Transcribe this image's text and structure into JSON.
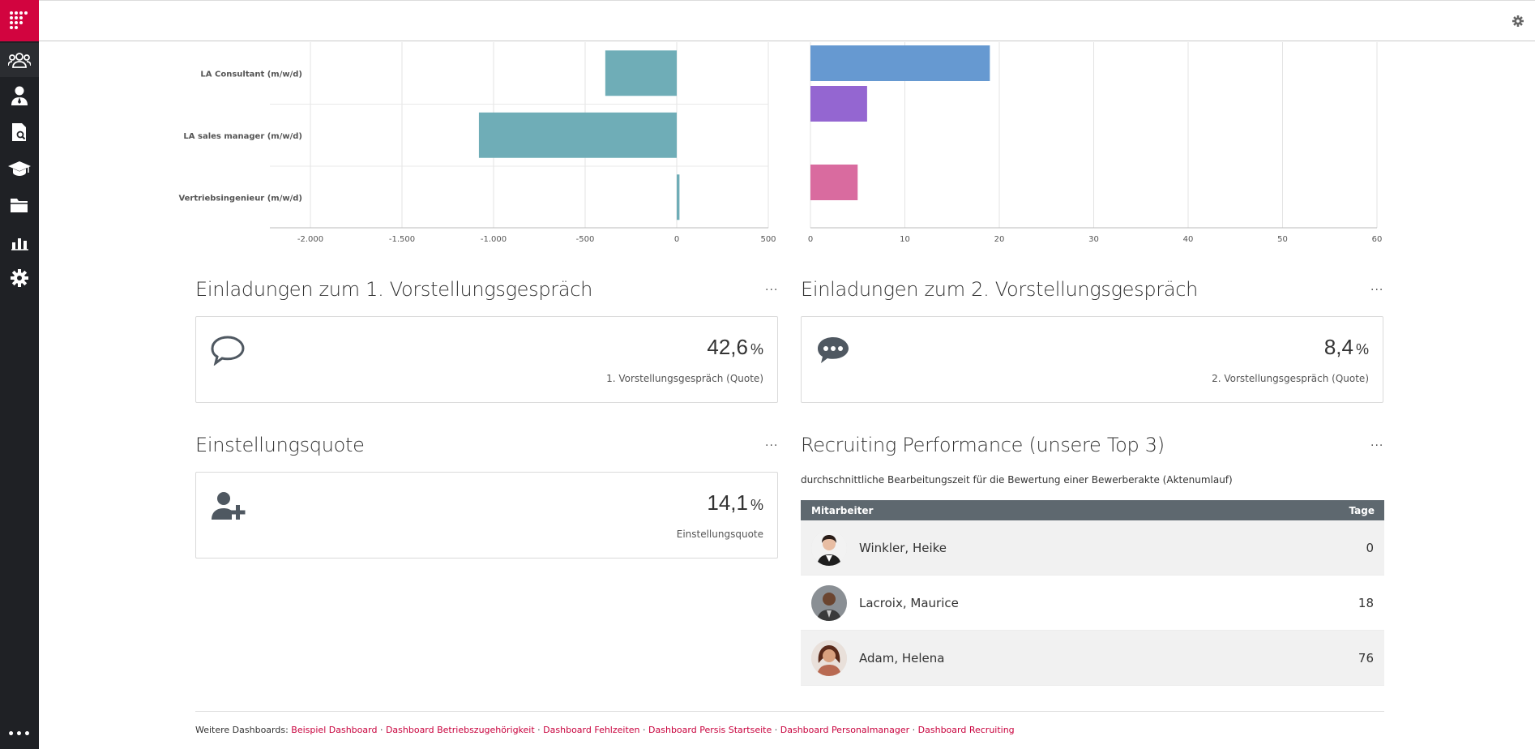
{
  "sidebar": {
    "items": [
      {
        "name": "users-icon"
      },
      {
        "name": "person-icon"
      },
      {
        "name": "document-search-icon"
      },
      {
        "name": "graduation-cap-icon"
      },
      {
        "name": "folder-icon"
      },
      {
        "name": "chart-icon"
      },
      {
        "name": "settings-icon"
      }
    ],
    "more_label": "•••"
  },
  "chart_data": [
    {
      "type": "bar",
      "orientation": "horizontal",
      "categories": [
        "LA Consultant (m/w/d)",
        "LA sales manager (m/w/d)",
        "Vertriebsingenieur (m/w/d)"
      ],
      "values": [
        -390,
        -1080,
        15
      ],
      "xlim": [
        -2000,
        500
      ],
      "xticks": [
        "-2.000",
        "-1.500",
        "-1.000",
        "-500",
        "0",
        "500"
      ],
      "color": "#6fadb7",
      "grid": true
    },
    {
      "type": "bar",
      "orientation": "horizontal",
      "values": [
        19,
        6,
        0,
        5
      ],
      "colors": [
        "#6699d1",
        "#9466d1",
        "#d166a3",
        "#d96b9f"
      ],
      "xlim": [
        0,
        60
      ],
      "xticks": [
        "0",
        "10",
        "20",
        "30",
        "40",
        "50",
        "60"
      ],
      "grid": true
    }
  ],
  "widgets": {
    "w1": {
      "title": "Einladungen zum 1. Vorstellungsgespräch",
      "menu": "...",
      "value": "42,6",
      "unit": "%",
      "sub": "1. Vorstellungsgespräch (Quote)"
    },
    "w2": {
      "title": "Einladungen zum 2. Vorstellungsgespräch",
      "menu": "...",
      "value": "8,4",
      "unit": "%",
      "sub": "2. Vorstellungsgespräch (Quote)"
    },
    "w3": {
      "title": "Einstellungsquote",
      "menu": "...",
      "value": "14,1",
      "unit": "%",
      "sub": "Einstellungsquote"
    },
    "w4": {
      "title": "Recruiting Performance (unsere Top 3)",
      "menu": "...",
      "desc": "durchschnittliche Bearbeitungszeit für die Bewertung einer Bewerberakte (Aktenumlauf)",
      "col_employee": "Mitarbeiter",
      "col_days": "Tage",
      "rows": [
        {
          "name": "Winkler, Heike",
          "days": "0"
        },
        {
          "name": "Lacroix, Maurice",
          "days": "18"
        },
        {
          "name": "Adam, Helena",
          "days": "76"
        }
      ]
    }
  },
  "footer": {
    "prefix": "Weitere Dashboards:",
    "links": [
      "Beispiel Dashboard",
      "Dashboard Betriebszugehörigkeit",
      "Dashboard Fehlzeiten",
      "Dashboard Persis Startseite",
      "Dashboard Personalmanager",
      "Dashboard Recruiting"
    ],
    "separator": "·"
  }
}
